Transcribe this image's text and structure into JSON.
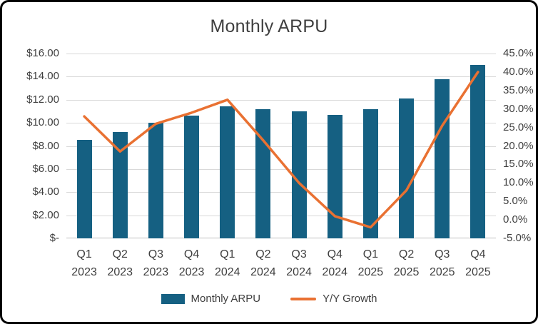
{
  "chart_data": {
    "type": "combo",
    "title": "Monthly ARPU",
    "categories": [
      "Q1 2023",
      "Q2 2023",
      "Q3 2023",
      "Q4 2023",
      "Q1 2024",
      "Q2 2024",
      "Q3 2024",
      "Q4 2024",
      "Q1 2025",
      "Q2 2025",
      "Q3 2025",
      "Q4 2025"
    ],
    "series": [
      {
        "name": "Monthly ARPU",
        "type": "bar",
        "axis": "left",
        "color": "#156082",
        "values": [
          8.5,
          9.2,
          10.0,
          10.6,
          11.4,
          11.2,
          11.0,
          10.7,
          11.2,
          12.1,
          13.8,
          15.0
        ]
      },
      {
        "name": "Y/Y Growth",
        "type": "line",
        "axis": "right",
        "unit": "%",
        "color": "#E97132",
        "values": [
          28,
          18.5,
          26,
          29,
          32.5,
          21.5,
          10,
          1,
          -2,
          8,
          25.5,
          40
        ]
      }
    ],
    "left_axis": {
      "min": 0,
      "max": 16,
      "step": 2,
      "tick_labels": [
        "$-",
        "$2.00",
        "$4.00",
        "$6.00",
        "$8.00",
        "$10.00",
        "$12.00",
        "$14.00",
        "$16.00"
      ]
    },
    "right_axis": {
      "min": -5,
      "max": 45,
      "step": 5,
      "tick_labels": [
        "-5.0%",
        "0.0%",
        "5.0%",
        "10.0%",
        "15.0%",
        "20.0%",
        "25.0%",
        "30.0%",
        "35.0%",
        "40.0%",
        "45.0%"
      ]
    },
    "legend": {
      "position": "bottom",
      "items": [
        "Monthly ARPU",
        "Y/Y Growth"
      ]
    },
    "grid": true,
    "colors": {
      "gridline": "#d9d9d9",
      "axis_line": "#bfbfbf",
      "text": "#3f3f3f"
    }
  }
}
